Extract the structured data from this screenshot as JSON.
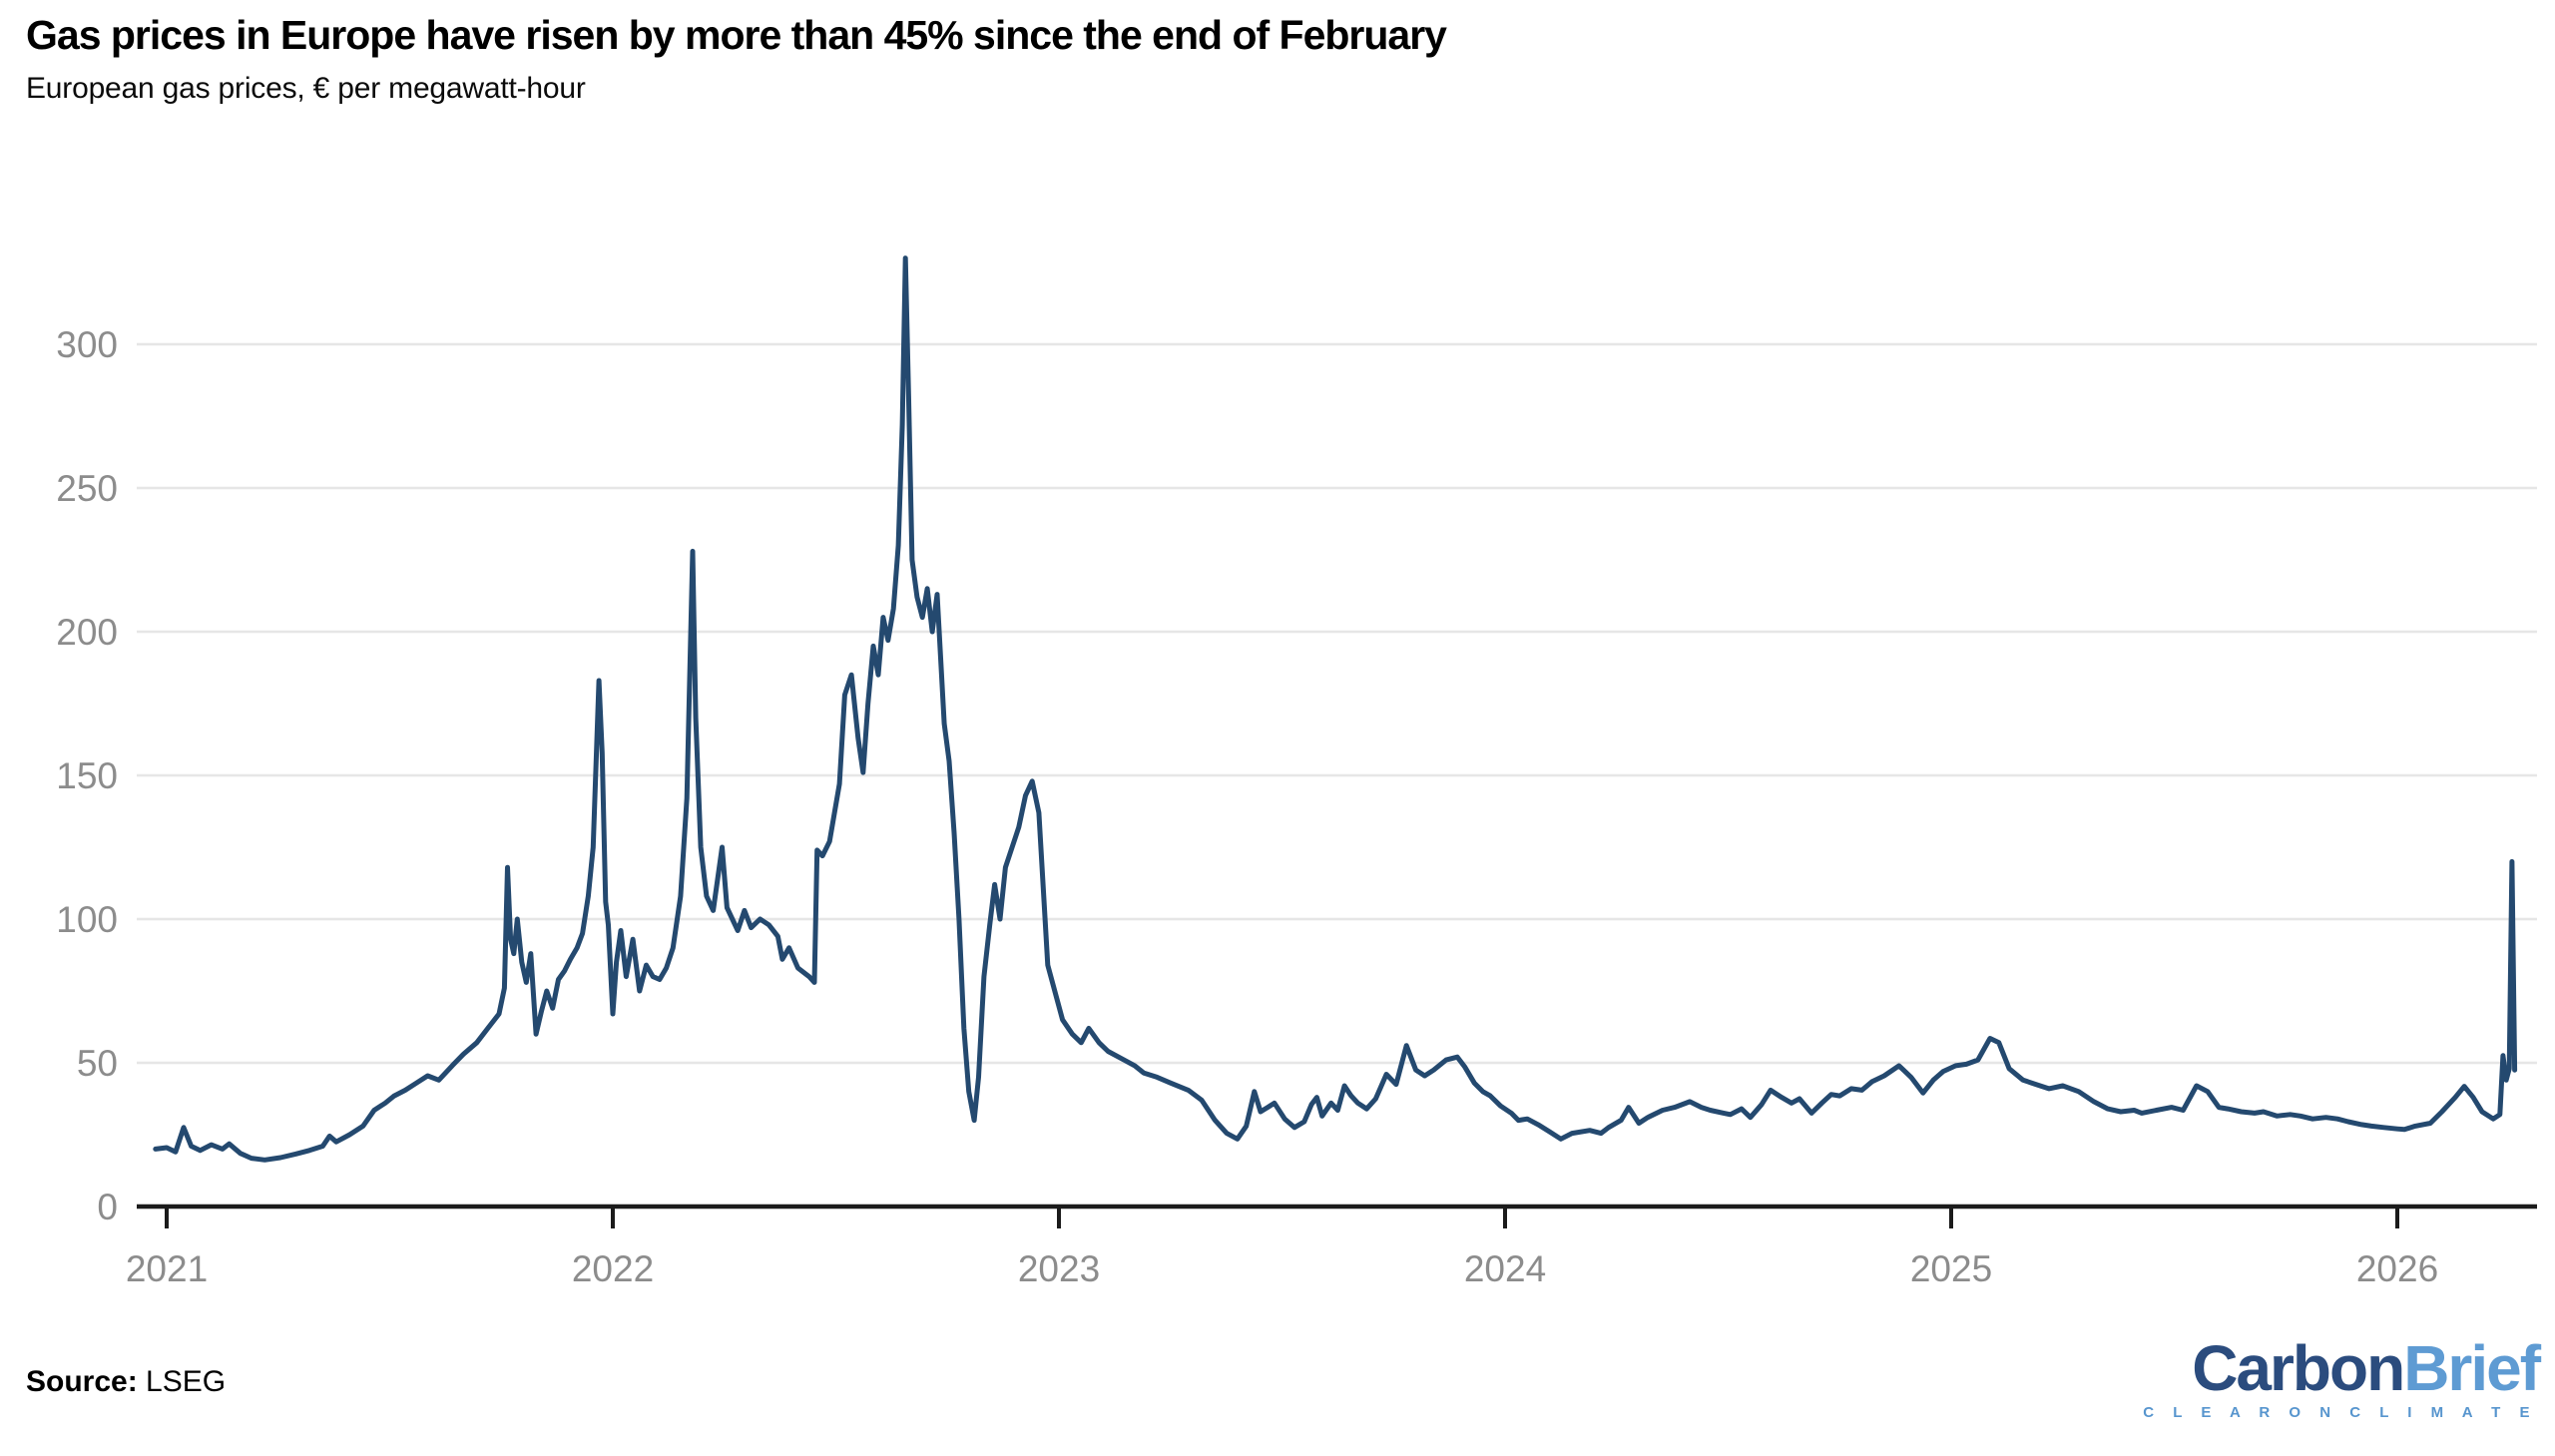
{
  "header": {
    "title": "Gas prices in Europe have risen by more than 45% since the end of February",
    "subtitle": "European gas prices, € per megawatt-hour"
  },
  "footer": {
    "source_label": "Source:",
    "source_value": "LSEG"
  },
  "logo": {
    "word1": "Carbon",
    "word2": "Brief",
    "tagline": "C L E A R   O N   C L I M A T E",
    "word1_color": "#2B4C7E",
    "word2_color": "#5E9BD3",
    "tagline_color": "#5795CE"
  },
  "chart_data": {
    "type": "line",
    "title": "Gas prices in Europe have risen by more than 45% since the end of February",
    "subtitle": "European gas prices, € per megawatt-hour",
    "xlabel": "",
    "ylabel": "€ per megawatt-hour",
    "x_tick_years": [
      2021,
      2022,
      2023,
      2024,
      2025,
      2026
    ],
    "x_tick_labels": [
      "2021",
      "2022",
      "2023",
      "2024",
      "2025",
      "2026"
    ],
    "y_ticks": [
      0,
      50,
      100,
      150,
      200,
      250,
      300
    ],
    "ylim": [
      0,
      345
    ],
    "xlim": [
      2020.97,
      2026.31
    ],
    "grid": "horizontal-light",
    "legend": "none",
    "line_color": "#24496F",
    "axis_color": "#1B1B1B",
    "grid_color": "#E6E6E6",
    "tick_label_color": "#8C8C8C",
    "series": [
      {
        "name": "European gas price (€ per megawatt-hour)",
        "points": [
          [
            2020.975,
            20
          ],
          [
            2021.0,
            20.5
          ],
          [
            2021.02,
            19
          ],
          [
            2021.038,
            27.5
          ],
          [
            2021.055,
            21
          ],
          [
            2021.075,
            19.5
          ],
          [
            2021.1,
            21.5
          ],
          [
            2021.125,
            20
          ],
          [
            2021.14,
            21.8
          ],
          [
            2021.165,
            18.5
          ],
          [
            2021.19,
            16.8
          ],
          [
            2021.22,
            16.2
          ],
          [
            2021.255,
            17
          ],
          [
            2021.29,
            18.3
          ],
          [
            2021.32,
            19.5
          ],
          [
            2021.35,
            21
          ],
          [
            2021.365,
            24.5
          ],
          [
            2021.38,
            22.5
          ],
          [
            2021.41,
            25
          ],
          [
            2021.44,
            28
          ],
          [
            2021.465,
            33.5
          ],
          [
            2021.49,
            36
          ],
          [
            2021.51,
            38.5
          ],
          [
            2021.535,
            40.5
          ],
          [
            2021.56,
            43
          ],
          [
            2021.585,
            45.5
          ],
          [
            2021.61,
            44
          ],
          [
            2021.64,
            49
          ],
          [
            2021.665,
            53
          ],
          [
            2021.695,
            57
          ],
          [
            2021.72,
            62
          ],
          [
            2021.745,
            67
          ],
          [
            2021.757,
            76
          ],
          [
            2021.764,
            118
          ],
          [
            2021.771,
            93
          ],
          [
            2021.778,
            88
          ],
          [
            2021.786,
            100
          ],
          [
            2021.796,
            85
          ],
          [
            2021.806,
            78
          ],
          [
            2021.816,
            88
          ],
          [
            2021.828,
            60
          ],
          [
            2021.84,
            68
          ],
          [
            2021.852,
            75
          ],
          [
            2021.865,
            69
          ],
          [
            2021.878,
            79
          ],
          [
            2021.892,
            82
          ],
          [
            2021.905,
            86
          ],
          [
            2021.92,
            90
          ],
          [
            2021.932,
            95
          ],
          [
            2021.945,
            108
          ],
          [
            2021.956,
            125
          ],
          [
            2021.969,
            183
          ],
          [
            2021.976,
            158
          ],
          [
            2021.984,
            106
          ],
          [
            2021.99,
            98
          ],
          [
            2022.0,
            67
          ],
          [
            2022.008,
            85
          ],
          [
            2022.018,
            96
          ],
          [
            2022.03,
            80
          ],
          [
            2022.045,
            93
          ],
          [
            2022.06,
            75
          ],
          [
            2022.075,
            84
          ],
          [
            2022.09,
            80
          ],
          [
            2022.105,
            79
          ],
          [
            2022.12,
            83
          ],
          [
            2022.135,
            90
          ],
          [
            2022.152,
            108
          ],
          [
            2022.166,
            142
          ],
          [
            2022.179,
            228
          ],
          [
            2022.186,
            170
          ],
          [
            2022.197,
            125
          ],
          [
            2022.21,
            108
          ],
          [
            2022.225,
            103
          ],
          [
            2022.245,
            125
          ],
          [
            2022.256,
            104
          ],
          [
            2022.28,
            96
          ],
          [
            2022.295,
            103
          ],
          [
            2022.31,
            97
          ],
          [
            2022.33,
            100
          ],
          [
            2022.35,
            98
          ],
          [
            2022.37,
            94
          ],
          [
            2022.38,
            86
          ],
          [
            2022.395,
            90
          ],
          [
            2022.415,
            83
          ],
          [
            2022.44,
            80
          ],
          [
            2022.452,
            78
          ],
          [
            2022.458,
            124
          ],
          [
            2022.47,
            122
          ],
          [
            2022.486,
            127
          ],
          [
            2022.508,
            147
          ],
          [
            2022.52,
            178
          ],
          [
            2022.535,
            185
          ],
          [
            2022.55,
            163
          ],
          [
            2022.561,
            151
          ],
          [
            2022.572,
            175
          ],
          [
            2022.584,
            195
          ],
          [
            2022.595,
            185
          ],
          [
            2022.606,
            205
          ],
          [
            2022.617,
            197
          ],
          [
            2022.629,
            208
          ],
          [
            2022.64,
            230
          ],
          [
            2022.649,
            272
          ],
          [
            2022.656,
            330
          ],
          [
            2022.663,
            282
          ],
          [
            2022.671,
            225
          ],
          [
            2022.682,
            212
          ],
          [
            2022.694,
            205
          ],
          [
            2022.705,
            215
          ],
          [
            2022.716,
            200
          ],
          [
            2022.727,
            213
          ],
          [
            2022.743,
            168
          ],
          [
            2022.754,
            155
          ],
          [
            2022.765,
            130
          ],
          [
            2022.776,
            100
          ],
          [
            2022.787,
            62
          ],
          [
            2022.798,
            40
          ],
          [
            2022.81,
            30
          ],
          [
            2022.82,
            45
          ],
          [
            2022.832,
            80
          ],
          [
            2022.845,
            98
          ],
          [
            2022.856,
            112
          ],
          [
            2022.868,
            100
          ],
          [
            2022.88,
            118
          ],
          [
            2022.895,
            125
          ],
          [
            2022.91,
            132
          ],
          [
            2022.925,
            143
          ],
          [
            2022.94,
            148
          ],
          [
            2022.955,
            137
          ],
          [
            2022.975,
            84
          ],
          [
            2023.008,
            65
          ],
          [
            2023.03,
            60
          ],
          [
            2023.05,
            57
          ],
          [
            2023.067,
            62
          ],
          [
            2023.09,
            57
          ],
          [
            2023.11,
            54
          ],
          [
            2023.14,
            51.5
          ],
          [
            2023.17,
            49
          ],
          [
            2023.19,
            46.5
          ],
          [
            2023.22,
            45
          ],
          [
            2023.25,
            43
          ],
          [
            2023.29,
            40.5
          ],
          [
            2023.32,
            37
          ],
          [
            2023.35,
            30
          ],
          [
            2023.376,
            25.5
          ],
          [
            2023.4,
            23.5
          ],
          [
            2023.42,
            28
          ],
          [
            2023.438,
            40
          ],
          [
            2023.452,
            33
          ],
          [
            2023.468,
            34.5
          ],
          [
            2023.483,
            36
          ],
          [
            2023.506,
            30.5
          ],
          [
            2023.528,
            27.5
          ],
          [
            2023.55,
            29.5
          ],
          [
            2023.566,
            35.5
          ],
          [
            2023.578,
            38
          ],
          [
            2023.59,
            31.5
          ],
          [
            2023.61,
            36
          ],
          [
            2023.625,
            33.5
          ],
          [
            2023.64,
            42
          ],
          [
            2023.655,
            38.5
          ],
          [
            2023.67,
            36
          ],
          [
            2023.69,
            34
          ],
          [
            2023.71,
            37.5
          ],
          [
            2023.734,
            46
          ],
          [
            2023.756,
            42.5
          ],
          [
            2023.779,
            56
          ],
          [
            2023.8,
            47.5
          ],
          [
            2023.82,
            45.5
          ],
          [
            2023.84,
            47.5
          ],
          [
            2023.868,
            51
          ],
          [
            2023.893,
            52
          ],
          [
            2023.91,
            48.5
          ],
          [
            2023.931,
            43
          ],
          [
            2023.95,
            40
          ],
          [
            2023.967,
            38.5
          ],
          [
            2023.99,
            35
          ],
          [
            2024.014,
            32.5
          ],
          [
            2024.03,
            30
          ],
          [
            2024.05,
            30.5
          ],
          [
            2024.074,
            28.5
          ],
          [
            2024.1,
            26
          ],
          [
            2024.125,
            23.5
          ],
          [
            2024.15,
            25.5
          ],
          [
            2024.19,
            26.5
          ],
          [
            2024.215,
            25.5
          ],
          [
            2024.232,
            27.5
          ],
          [
            2024.26,
            30
          ],
          [
            2024.277,
            34.5
          ],
          [
            2024.3,
            29
          ],
          [
            2024.32,
            31
          ],
          [
            2024.353,
            33.5
          ],
          [
            2024.38,
            34.5
          ],
          [
            2024.414,
            36.5
          ],
          [
            2024.44,
            34.5
          ],
          [
            2024.46,
            33.5
          ],
          [
            2024.49,
            32.5
          ],
          [
            2024.505,
            32
          ],
          [
            2024.53,
            34
          ],
          [
            2024.55,
            31
          ],
          [
            2024.575,
            35.5
          ],
          [
            2024.595,
            40.5
          ],
          [
            2024.62,
            38
          ],
          [
            2024.642,
            36
          ],
          [
            2024.66,
            37.5
          ],
          [
            2024.687,
            32.5
          ],
          [
            2024.71,
            36
          ],
          [
            2024.731,
            39
          ],
          [
            2024.75,
            38.5
          ],
          [
            2024.776,
            41
          ],
          [
            2024.8,
            40.5
          ],
          [
            2024.823,
            43.5
          ],
          [
            2024.85,
            45.5
          ],
          [
            2024.883,
            49
          ],
          [
            2024.91,
            45
          ],
          [
            2024.937,
            39.5
          ],
          [
            2024.96,
            44
          ],
          [
            2024.982,
            47
          ],
          [
            2025.01,
            49
          ],
          [
            2025.034,
            49.5
          ],
          [
            2025.06,
            51
          ],
          [
            2025.087,
            58.5
          ],
          [
            2025.107,
            57
          ],
          [
            2025.13,
            48
          ],
          [
            2025.161,
            44
          ],
          [
            2025.19,
            42.5
          ],
          [
            2025.219,
            41
          ],
          [
            2025.25,
            42
          ],
          [
            2025.286,
            40
          ],
          [
            2025.32,
            36.5
          ],
          [
            2025.351,
            34
          ],
          [
            2025.38,
            33
          ],
          [
            2025.41,
            33.5
          ],
          [
            2025.427,
            32.5
          ],
          [
            2025.46,
            33.5
          ],
          [
            2025.494,
            34.5
          ],
          [
            2025.52,
            33.5
          ],
          [
            2025.55,
            42
          ],
          [
            2025.575,
            40
          ],
          [
            2025.6,
            34.5
          ],
          [
            2025.62,
            34
          ],
          [
            2025.65,
            33
          ],
          [
            2025.68,
            32.5
          ],
          [
            2025.7,
            33
          ],
          [
            2025.73,
            31.5
          ],
          [
            2025.76,
            32
          ],
          [
            2025.783,
            31.5
          ],
          [
            2025.81,
            30.5
          ],
          [
            2025.84,
            31
          ],
          [
            2025.866,
            30.5
          ],
          [
            2025.89,
            29.5
          ],
          [
            2025.92,
            28.5
          ],
          [
            2025.942,
            28
          ],
          [
            2025.97,
            27.5
          ],
          [
            2026.0,
            27
          ],
          [
            2026.016,
            26.8
          ],
          [
            2026.04,
            28
          ],
          [
            2026.074,
            29
          ],
          [
            2026.1,
            33
          ],
          [
            2026.13,
            38
          ],
          [
            2026.15,
            41.8
          ],
          [
            2026.17,
            38
          ],
          [
            2026.19,
            33
          ],
          [
            2026.215,
            30.5
          ],
          [
            2026.23,
            32
          ],
          [
            2026.237,
            52.5
          ],
          [
            2026.244,
            44
          ],
          [
            2026.251,
            48
          ],
          [
            2026.257,
            120
          ],
          [
            2026.263,
            47.5
          ]
        ]
      }
    ]
  }
}
